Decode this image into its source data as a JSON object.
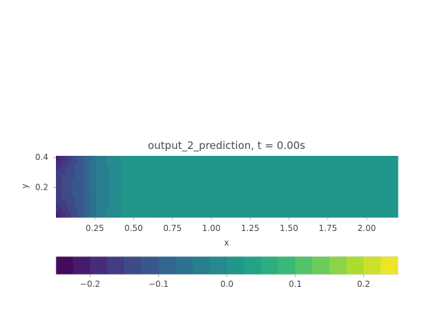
{
  "chart_data": {
    "type": "heatmap",
    "title": "output_2_prediction, t = 0.00s",
    "xlabel": "x",
    "ylabel": "y",
    "xlim": [
      0.0,
      2.2
    ],
    "ylim": [
      0.0,
      0.41
    ],
    "xticks": [
      0.25,
      0.5,
      0.75,
      1.0,
      1.25,
      1.5,
      1.75,
      2.0
    ],
    "xtick_labels": [
      "0.25",
      "0.50",
      "0.75",
      "1.00",
      "1.25",
      "1.50",
      "1.75",
      "2.00"
    ],
    "yticks": [
      0.2,
      0.4
    ],
    "ytick_labels": [
      "0.2",
      "0.4"
    ],
    "colormap": "viridis",
    "levels": 20,
    "vmin": -0.25,
    "vmax": 0.25,
    "background_value": 0.0,
    "field_description_points": {
      "x": [
        0.0,
        0.03,
        0.06,
        0.09,
        0.12,
        0.15,
        0.18,
        0.21,
        0.24,
        0.27,
        0.3,
        0.33,
        0.36,
        0.39,
        0.42
      ],
      "value_center": [
        -0.16,
        -0.15,
        -0.14,
        -0.13,
        -0.12,
        -0.11,
        -0.1,
        -0.08,
        -0.07,
        -0.05,
        -0.04,
        -0.03,
        -0.02,
        -0.01,
        0.0
      ],
      "value_edge": [
        -0.22,
        -0.2,
        -0.18,
        -0.16,
        -0.14,
        -0.12,
        -0.1,
        -0.08,
        -0.06,
        -0.04,
        -0.03,
        -0.02,
        -0.01,
        -0.005,
        0.0
      ]
    },
    "colorbar": {
      "orientation": "horizontal",
      "ticks": [
        -0.2,
        -0.1,
        0.0,
        0.1,
        0.2
      ],
      "tick_labels": [
        "−0.2",
        "−0.1",
        "0.0",
        "0.1",
        "0.2"
      ]
    },
    "grid": false,
    "legend": "none"
  }
}
